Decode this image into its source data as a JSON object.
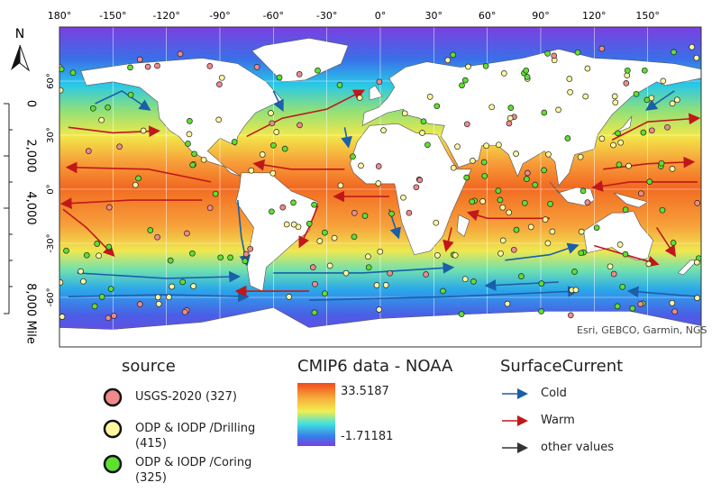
{
  "north_arrow": "N",
  "map": {
    "lon_labels": [
      "180°",
      "-150°",
      "-120°",
      "-90°",
      "-60°",
      "-30°",
      "0°",
      "30°",
      "60°",
      "90°",
      "120°",
      "150°"
    ],
    "lat_labels": [
      "60°",
      "30°",
      "0°",
      "-30°",
      "-60°"
    ],
    "attribution": "Esri, GEBCO, Garmin, NGS"
  },
  "scale_bar": {
    "labels": [
      "0",
      "2,000",
      "4,000",
      "8,000 Mile"
    ]
  },
  "legend_source": {
    "title": "source",
    "items": [
      "USGS-2020 (327)",
      "ODP & IODP /Drilling (415)",
      "ODP & IODP /Coring (325)"
    ]
  },
  "legend_temperature": {
    "title": "CMIP6 data - NOAA",
    "max_label": "33.5187",
    "min_label": "-1.71181"
  },
  "legend_current": {
    "title": "SurfaceCurrent",
    "items": [
      "Cold",
      "Warm",
      "other values"
    ]
  }
}
